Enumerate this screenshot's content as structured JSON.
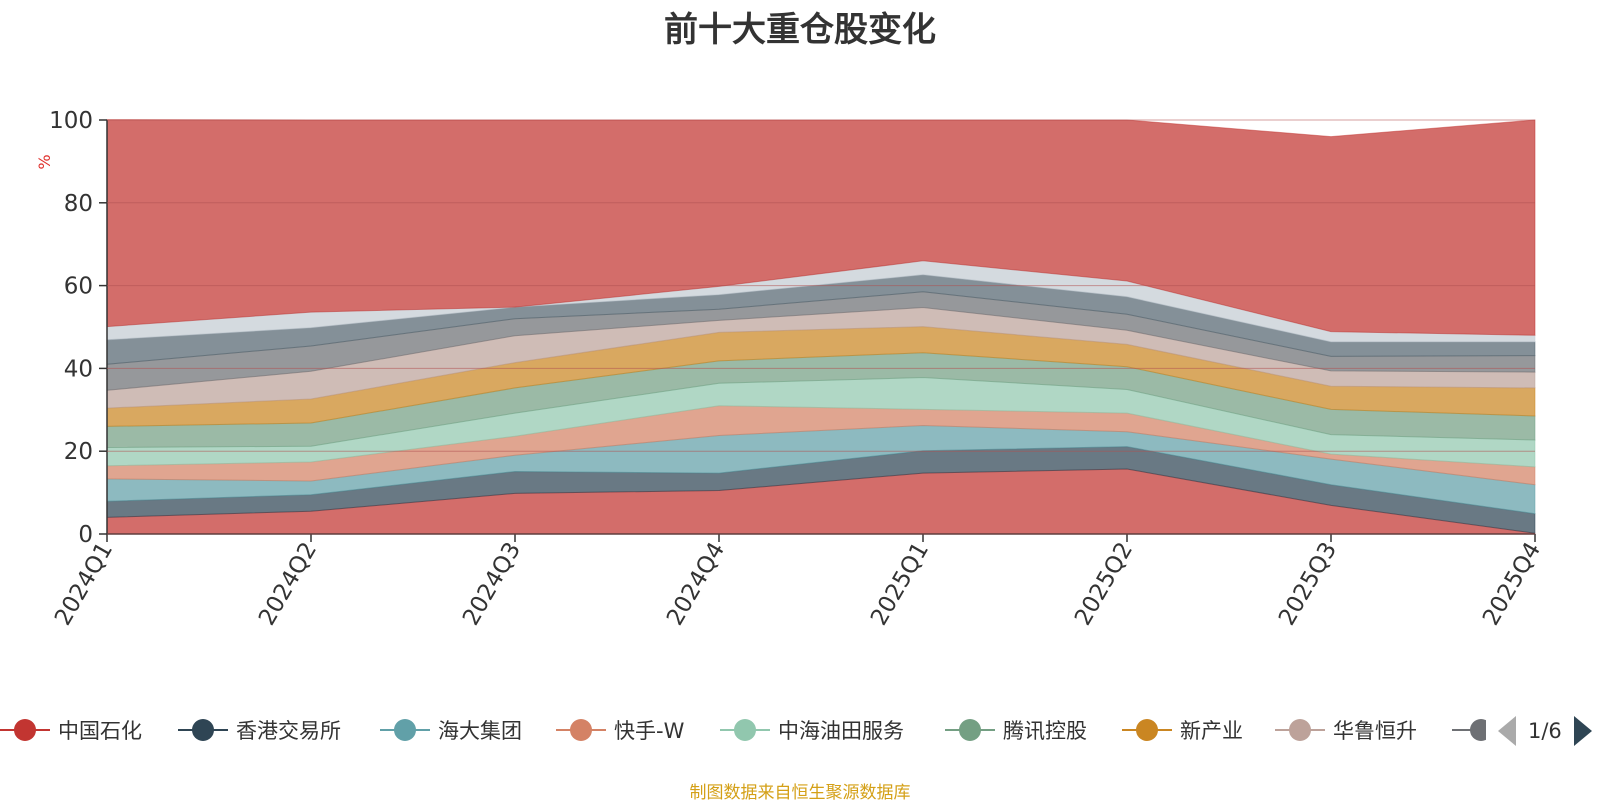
{
  "chart_data": {
    "type": "area",
    "title": "前十大重仓股变化",
    "ylabel": "%",
    "ylim": [
      0,
      100
    ],
    "yticks": [
      0,
      20,
      40,
      60,
      80,
      100
    ],
    "grid": true,
    "categories": [
      "2024Q1",
      "2024Q2",
      "2024Q3",
      "2024Q4",
      "2025Q1",
      "2025Q2",
      "2025Q3",
      "2025Q4"
    ],
    "series": [
      {
        "name": "中国石化",
        "color": "#c23531",
        "values": [
          4.0,
          5.5,
          9.8,
          10.5,
          14.7,
          15.7,
          6.9,
          0.2
        ]
      },
      {
        "name": "香港交易所",
        "color": "#2f4554",
        "values": [
          3.9,
          4.0,
          5.3,
          4.2,
          5.4,
          5.4,
          5.0,
          4.7
        ]
      },
      {
        "name": "海大集团",
        "color": "#61a0a8",
        "values": [
          5.4,
          3.3,
          3.9,
          9.1,
          6.1,
          3.6,
          6.2,
          7.0
        ]
      },
      {
        "name": "快手-W",
        "color": "#d48265",
        "values": [
          3.2,
          4.6,
          4.6,
          7.2,
          3.9,
          4.5,
          1.2,
          4.3
        ]
      },
      {
        "name": "中海油田服务",
        "color": "#91c7ae",
        "values": [
          4.4,
          3.8,
          5.6,
          5.4,
          7.7,
          5.7,
          4.7,
          6.5
        ]
      },
      {
        "name": "腾讯控股",
        "color": "#749f83",
        "values": [
          5.1,
          5.6,
          6.1,
          5.4,
          6.0,
          5.5,
          6.1,
          5.8
        ]
      },
      {
        "name": "新产业",
        "color": "#ca8622",
        "values": [
          4.4,
          5.8,
          6.1,
          6.9,
          6.3,
          5.4,
          5.6,
          6.8
        ]
      },
      {
        "name": "华鲁恒升",
        "color": "#bda29a",
        "values": [
          4.3,
          6.7,
          6.5,
          2.9,
          4.6,
          3.4,
          3.7,
          3.8
        ]
      },
      {
        "name": "",
        "color": "#6e7074",
        "values": [
          6.3,
          6.1,
          4.1,
          2.7,
          3.8,
          3.9,
          3.5,
          4.0
        ]
      },
      {
        "name": "",
        "color": "#546570",
        "values": [
          5.9,
          4.4,
          2.8,
          3.5,
          4.1,
          4.2,
          3.5,
          3.3
        ]
      },
      {
        "name": "",
        "color": "#c4ccd3",
        "values": [
          3.2,
          3.8,
          0.0,
          2.0,
          3.4,
          3.8,
          2.5,
          1.6
        ]
      },
      {
        "name": "",
        "color": "#c23531",
        "values": [
          50.0,
          46.4,
          45.2,
          40.2,
          34.0,
          38.9,
          47.1,
          52.0
        ]
      }
    ]
  },
  "legend": {
    "items": [
      {
        "label": "中国石化",
        "color": "#c23531"
      },
      {
        "label": "香港交易所",
        "color": "#2f4554"
      },
      {
        "label": "海大集团",
        "color": "#61a0a8"
      },
      {
        "label": "快手-W",
        "color": "#d48265"
      },
      {
        "label": "中海油田服务",
        "color": "#91c7ae"
      },
      {
        "label": "腾讯控股",
        "color": "#749f83"
      },
      {
        "label": "新产业",
        "color": "#ca8622"
      },
      {
        "label": "华鲁恒升",
        "color": "#bda29a"
      }
    ],
    "partial_color": "#6e7074",
    "page": "1/6"
  },
  "source_note": "制图数据来自恒生聚源数据库"
}
